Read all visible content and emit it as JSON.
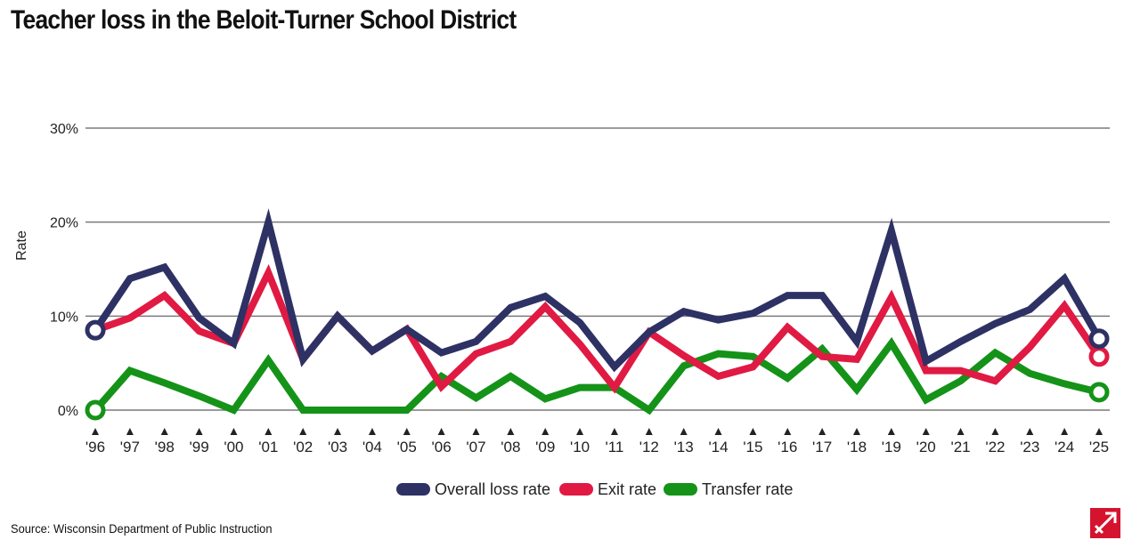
{
  "title": "Teacher loss in the Beloit-Turner School District",
  "source": "Source: Wisconsin Department of Public Instruction",
  "chart_data": {
    "type": "line",
    "title": "Teacher loss in the Beloit-Turner School District",
    "xlabel": "",
    "ylabel": "Rate",
    "ylim": [
      0,
      30
    ],
    "yticks": [
      0,
      10,
      20,
      30
    ],
    "ytick_labels": [
      "0%",
      "10%",
      "20%",
      "30%"
    ],
    "grid": true,
    "legend_position": "bottom-center",
    "categories": [
      "'96",
      "'97",
      "'98",
      "'99",
      "'00",
      "'01",
      "'02",
      "'03",
      "'04",
      "'05",
      "'06",
      "'07",
      "'08",
      "'09",
      "'10",
      "'11",
      "'12",
      "'13",
      "'14",
      "'15",
      "'16",
      "'17",
      "'18",
      "'19",
      "'20",
      "'21",
      "'22",
      "'23",
      "'24",
      "'25"
    ],
    "series": [
      {
        "name": "Overall loss rate",
        "color": "#2e3164",
        "values": [
          8.5,
          14.0,
          15.2,
          9.8,
          7.1,
          20.0,
          5.4,
          10.0,
          6.3,
          8.6,
          6.1,
          7.3,
          10.9,
          12.1,
          9.3,
          4.6,
          8.3,
          10.5,
          9.6,
          10.3,
          12.2,
          12.2,
          7.3,
          19.1,
          5.2,
          7.3,
          9.2,
          10.7,
          14.0,
          7.6
        ]
      },
      {
        "name": "Exit rate",
        "color": "#e01a43",
        "values": [
          8.5,
          9.8,
          12.2,
          8.4,
          7.1,
          14.6,
          5.4,
          10.0,
          6.3,
          8.6,
          2.5,
          6.0,
          7.3,
          11.0,
          7.0,
          2.4,
          8.3,
          5.8,
          3.6,
          4.6,
          8.8,
          5.7,
          5.4,
          12.0,
          4.2,
          4.2,
          3.1,
          6.7,
          11.1,
          5.7
        ]
      },
      {
        "name": "Transfer rate",
        "color": "#149318",
        "values": [
          0,
          4.2,
          2.9,
          1.5,
          0,
          5.3,
          0,
          0,
          0,
          0,
          3.6,
          1.3,
          3.6,
          1.2,
          2.4,
          2.4,
          0,
          4.7,
          6.0,
          5.7,
          3.4,
          6.5,
          2.2,
          7.1,
          1.1,
          3.1,
          6.1,
          3.9,
          2.8,
          1.9
        ]
      }
    ]
  }
}
